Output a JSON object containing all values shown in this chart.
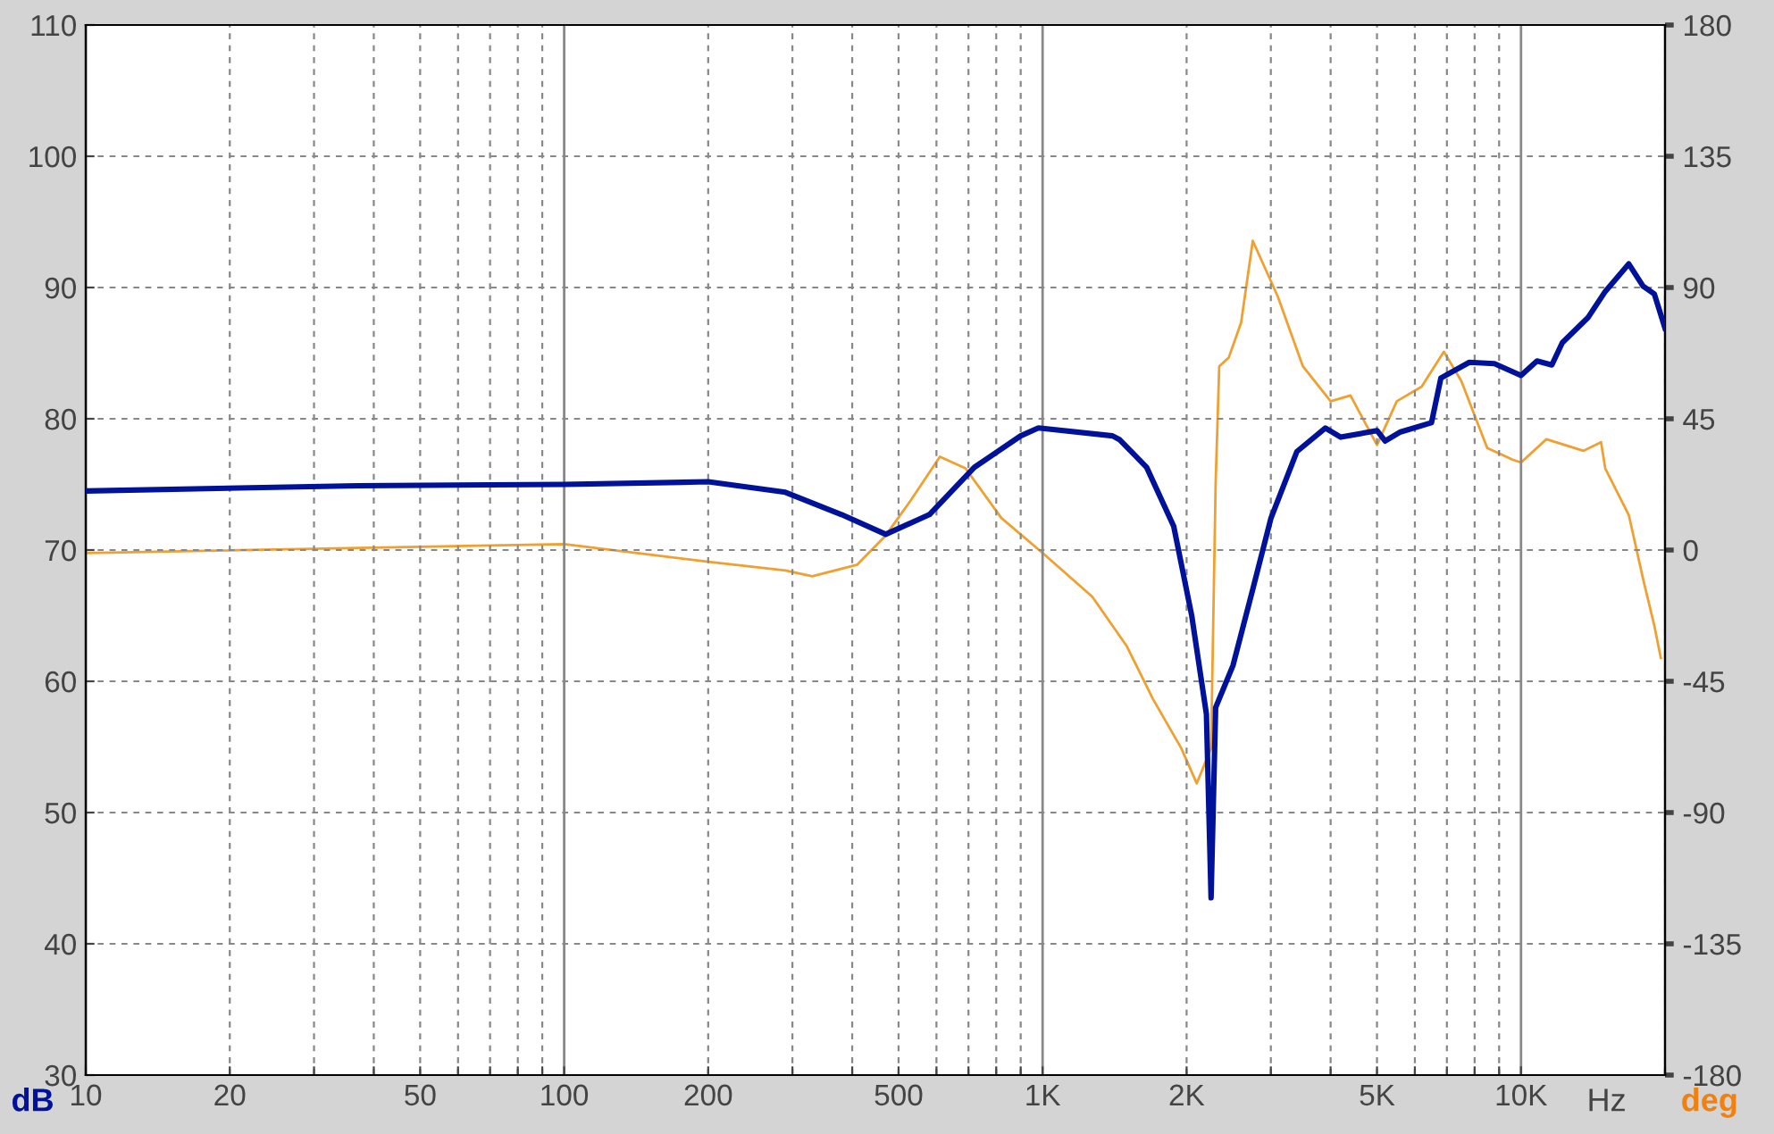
{
  "chart_data": {
    "type": "line",
    "xlabel": "Hz",
    "ylabel": "dB",
    "y2label": "deg",
    "log": "x",
    "grid": true,
    "xlim": [
      10,
      20000
    ],
    "xticks": [
      10,
      20,
      {
        "value": 30,
        "label": null
      },
      {
        "value": 40,
        "label": null
      },
      50,
      {
        "value": 60,
        "label": null
      },
      {
        "value": 70,
        "label": null
      },
      {
        "value": 80,
        "label": null
      },
      {
        "value": 90,
        "label": null
      },
      100,
      200,
      {
        "value": 300,
        "label": null
      },
      {
        "value": 400,
        "label": null
      },
      500,
      {
        "value": 600,
        "label": null
      },
      {
        "value": 700,
        "label": null
      },
      {
        "value": 800,
        "label": null
      },
      {
        "value": 900,
        "label": null
      },
      {
        "value": 1000,
        "label": "1K"
      },
      {
        "value": 2000,
        "label": "2K"
      },
      {
        "value": 3000,
        "label": null
      },
      {
        "value": 4000,
        "label": null
      },
      {
        "value": 5000,
        "label": "5K"
      },
      {
        "value": 6000,
        "label": null
      },
      {
        "value": 7000,
        "label": null
      },
      {
        "value": 8000,
        "label": null
      },
      {
        "value": 9000,
        "label": null
      },
      {
        "value": 10000,
        "label": "10K"
      },
      {
        "value": 20000,
        "label": null
      }
    ],
    "ylim": [
      30,
      110
    ],
    "yticks": [
      30,
      40,
      50,
      60,
      70,
      80,
      90,
      100,
      110
    ],
    "y2lim": [
      -180,
      180
    ],
    "y2ticks": [
      -180,
      -135,
      -90,
      -45,
      0,
      45,
      90,
      135,
      180
    ],
    "series": [
      {
        "color": "#00129a",
        "x": [
          10,
          37,
          100,
          200,
          290,
          380,
          470,
          580,
          720,
          900,
          980,
          1400,
          1450,
          1650,
          1880,
          2050,
          2200,
          2250,
          2300,
          2500,
          2750,
          3000,
          3400,
          3900,
          4200,
          5000,
          5200,
          5600,
          6500,
          6800,
          7800,
          8800,
          10000,
          10800,
          11600,
          12200,
          13800,
          15000,
          16800,
          18000,
          19000,
          20000
        ],
        "values": [
          74.5,
          74.9,
          75.0,
          75.2,
          74.4,
          72.7,
          71.2,
          72.7,
          76.3,
          78.7,
          79.3,
          78.7,
          78.4,
          76.3,
          71.8,
          65.0,
          57.5,
          43.5,
          58.0,
          61.2,
          67.0,
          72.4,
          77.5,
          79.3,
          78.6,
          79.1,
          78.3,
          79.0,
          79.7,
          83.1,
          84.3,
          84.2,
          83.3,
          84.4,
          84.1,
          85.8,
          87.7,
          89.7,
          91.8,
          90.1,
          89.5,
          86.9
        ]
      },
      {
        "color": "#f0a030",
        "axis": "y2",
        "x": [
          10,
          100,
          200,
          290,
          330,
          410,
          470,
          530,
          610,
          690,
          820,
          1000,
          1270,
          1500,
          1700,
          1950,
          2100,
          2250,
          2300,
          2340,
          2450,
          2600,
          2750,
          3100,
          3500,
          4000,
          4400,
          5000,
          5500,
          6200,
          6900,
          7500,
          8500,
          9600,
          10000,
          11300,
          13500,
          14700,
          15000,
          16800,
          18000,
          19000,
          19600
        ],
        "values": [
          -1,
          2,
          -4,
          -7,
          -9,
          -5,
          5,
          17,
          32,
          28,
          11,
          -1,
          -16,
          -33,
          -51,
          -68,
          -80,
          -68,
          23,
          63,
          66,
          78,
          106,
          87,
          63,
          51,
          53,
          36,
          51,
          56,
          68,
          58,
          35,
          31,
          30,
          38,
          34,
          37,
          28,
          12,
          -10,
          -26,
          -37
        ]
      }
    ]
  }
}
